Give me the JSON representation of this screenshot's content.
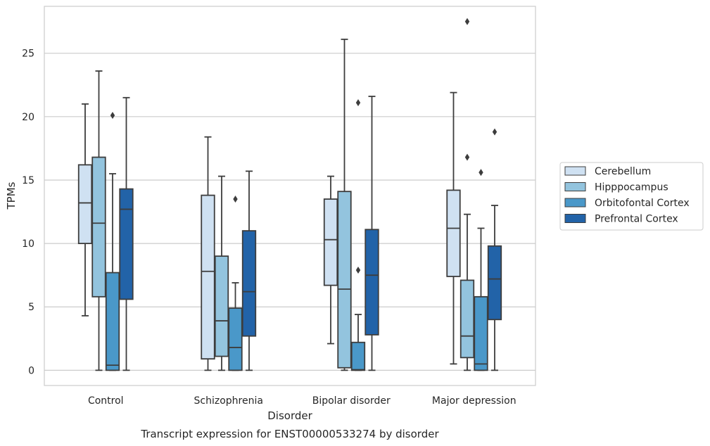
{
  "chart_data": {
    "type": "box",
    "caption": "Transcript expression for ENST00000533274 by disorder",
    "xlabel": "Disorder",
    "ylabel": "TPMs",
    "categories": [
      "Control",
      "Schizophrenia",
      "Bipolar disorder",
      "Major depression"
    ],
    "ylim": [
      -1.2,
      28.7
    ],
    "yticks": [
      0,
      5,
      10,
      15,
      20,
      25
    ],
    "grid": "horizontal",
    "legend_position": "right",
    "series": [
      {
        "name": "Cerebellum",
        "color": "#cfe1f2",
        "boxes": [
          {
            "whisker_low": 4.3,
            "q1": 10.0,
            "median": 13.2,
            "q3": 16.2,
            "whisker_high": 21.0,
            "outliers": []
          },
          {
            "whisker_low": 0.0,
            "q1": 0.9,
            "median": 7.8,
            "q3": 13.8,
            "whisker_high": 18.4,
            "outliers": []
          },
          {
            "whisker_low": 2.1,
            "q1": 6.7,
            "median": 10.3,
            "q3": 13.5,
            "whisker_high": 15.3,
            "outliers": []
          },
          {
            "whisker_low": 0.5,
            "q1": 7.4,
            "median": 11.2,
            "q3": 14.2,
            "whisker_high": 21.9,
            "outliers": []
          }
        ]
      },
      {
        "name": "Hipppocampus",
        "color": "#93c4de",
        "boxes": [
          {
            "whisker_low": 0.0,
            "q1": 5.8,
            "median": 11.6,
            "q3": 16.8,
            "whisker_high": 23.6,
            "outliers": []
          },
          {
            "whisker_low": 0.0,
            "q1": 1.1,
            "median": 3.9,
            "q3": 9.0,
            "whisker_high": 15.3,
            "outliers": []
          },
          {
            "whisker_low": 0.0,
            "q1": 0.2,
            "median": 6.4,
            "q3": 14.1,
            "whisker_high": 26.1,
            "outliers": []
          },
          {
            "whisker_low": 0.0,
            "q1": 1.0,
            "median": 2.7,
            "q3": 7.1,
            "whisker_high": 12.3,
            "outliers": [
              27.5,
              16.8
            ]
          }
        ]
      },
      {
        "name": "Orbitofontal Cortex",
        "color": "#4a98c9",
        "boxes": [
          {
            "whisker_low": 0.0,
            "q1": 0.0,
            "median": 0.4,
            "q3": 7.7,
            "whisker_high": 15.5,
            "outliers": [
              20.1
            ]
          },
          {
            "whisker_low": 0.0,
            "q1": 0.0,
            "median": 1.8,
            "q3": 4.9,
            "whisker_high": 6.9,
            "outliers": [
              13.5
            ]
          },
          {
            "whisker_low": 0.0,
            "q1": 0.0,
            "median": 0.05,
            "q3": 2.2,
            "whisker_high": 4.4,
            "outliers": [
              21.1,
              7.9
            ]
          },
          {
            "whisker_low": 0.0,
            "q1": 0.0,
            "median": 0.5,
            "q3": 5.8,
            "whisker_high": 11.2,
            "outliers": [
              15.6
            ]
          }
        ]
      },
      {
        "name": "Prefrontal Cortex",
        "color": "#2263a8",
        "boxes": [
          {
            "whisker_low": 0.0,
            "q1": 5.6,
            "median": 12.7,
            "q3": 14.3,
            "whisker_high": 21.5,
            "outliers": []
          },
          {
            "whisker_low": 0.0,
            "q1": 2.7,
            "median": 6.2,
            "q3": 11.0,
            "whisker_high": 15.7,
            "outliers": []
          },
          {
            "whisker_low": 0.0,
            "q1": 2.8,
            "median": 7.5,
            "q3": 11.1,
            "whisker_high": 21.6,
            "outliers": []
          },
          {
            "whisker_low": 0.0,
            "q1": 4.0,
            "median": 7.2,
            "q3": 9.8,
            "whisker_high": 13.0,
            "outliers": [
              18.8
            ]
          }
        ]
      }
    ]
  }
}
